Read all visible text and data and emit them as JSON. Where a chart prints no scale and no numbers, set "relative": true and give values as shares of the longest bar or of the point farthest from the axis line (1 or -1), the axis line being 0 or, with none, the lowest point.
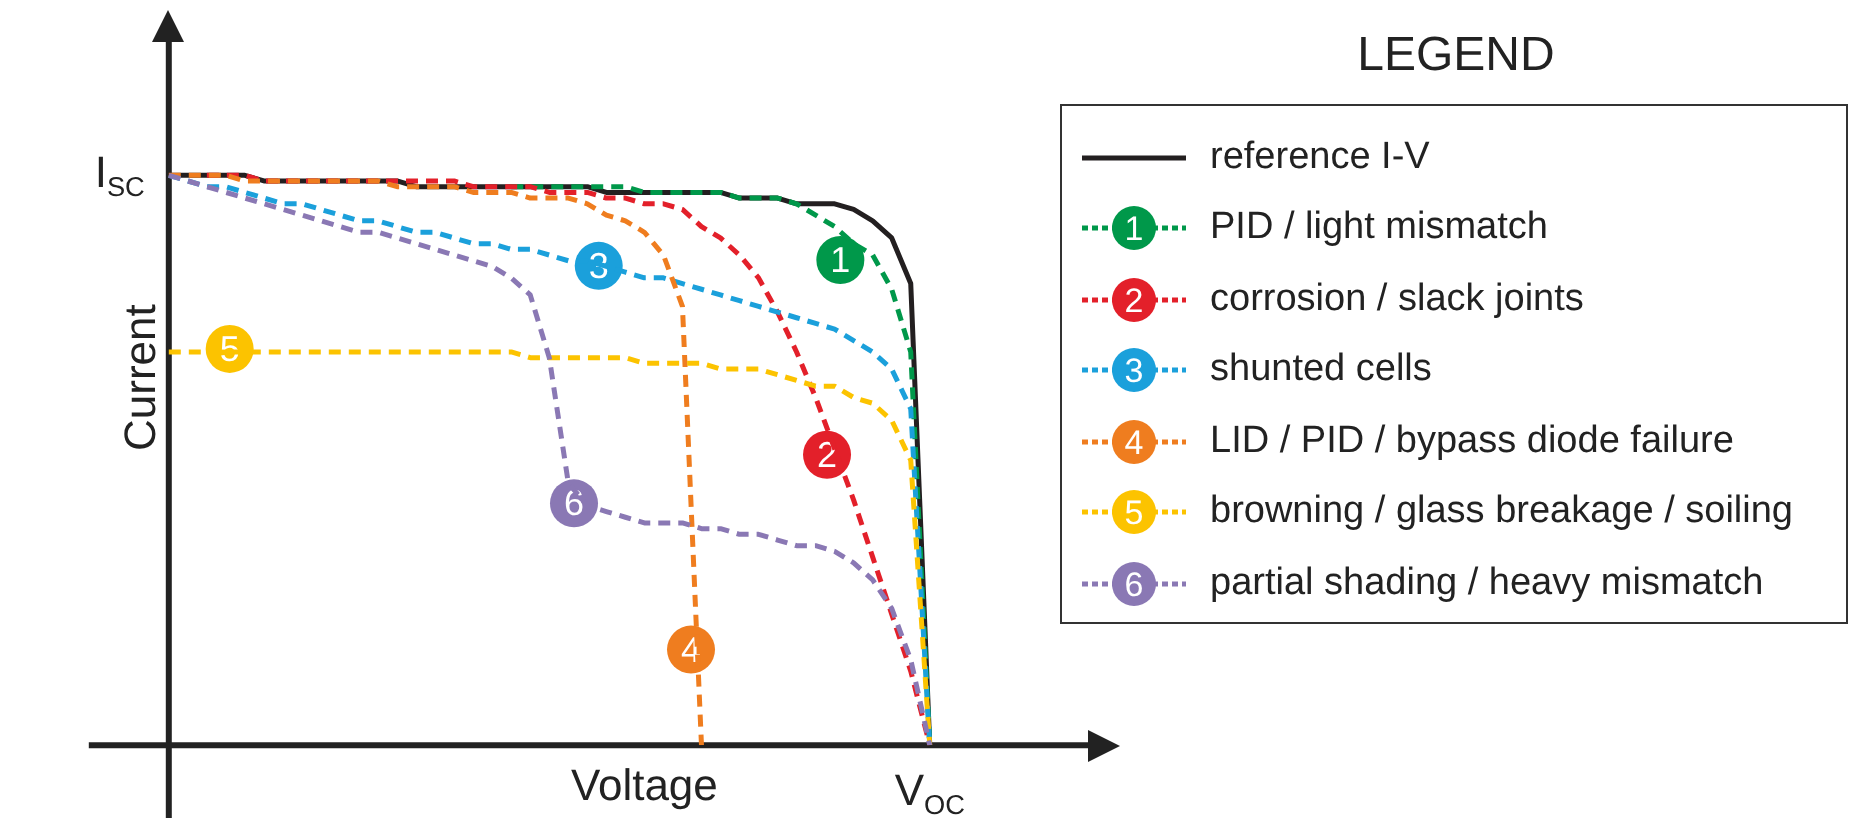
{
  "chart_data": {
    "type": "line",
    "xlabel": "Voltage",
    "ylabel": "Current",
    "legend_title": "LEGEND",
    "legend": "right",
    "relative": true,
    "categories": [
      null,
      null,
      null,
      null,
      null,
      null,
      null,
      null,
      null,
      null,
      null,
      null,
      null,
      null,
      null,
      null,
      null,
      null,
      null,
      null,
      null,
      null,
      null,
      null,
      null,
      null,
      null,
      null,
      null,
      null,
      null,
      null,
      null,
      null,
      null,
      null,
      null,
      null,
      null,
      null,
      null,
      null,
      null,
      null,
      null,
      null,
      null,
      null,
      null,
      null,
      null
    ],
    "annotations": [
      "I$_{SC}$",
      "V$_{OC}$",
      "1",
      "2",
      "3",
      "4",
      "5",
      "6"
    ],
    "series": [
      {
        "name": "reference I-V",
        "color": "#231f20",
        "line_style": "solid",
        "values": [
          1,
          1,
          1,
          1,
          1,
          0.99,
          0.99,
          0.99,
          0.99,
          0.99,
          0.99,
          0.99,
          0.99,
          0.98,
          0.98,
          0.98,
          0.98,
          0.98,
          0.98,
          0.98,
          0.98,
          0.98,
          0.98,
          0.97,
          0.97,
          0.97,
          0.97,
          0.97,
          0.97,
          0.97,
          0.96,
          0.96,
          0.96,
          0.95,
          0.95,
          0.95,
          0.94,
          0.92,
          0.89,
          0.81,
          0,
          null,
          null,
          null,
          null,
          null,
          null,
          null,
          null,
          null,
          null
        ]
      },
      {
        "name": "PID / light mismatch",
        "color": "#00984a",
        "line_style": "dashed",
        "values": [
          null,
          null,
          null,
          null,
          null,
          null,
          null,
          null,
          null,
          null,
          null,
          null,
          null,
          null,
          null,
          null,
          null,
          null,
          0.98,
          0.98,
          0.98,
          0.98,
          0.98,
          0.98,
          0.98,
          0.97,
          0.97,
          0.97,
          0.97,
          0.97,
          0.96,
          0.96,
          0.96,
          0.95,
          0.93,
          0.91,
          0.88,
          0.86,
          0.8,
          0.69,
          0,
          null,
          null,
          null,
          null,
          null,
          null,
          null,
          null,
          null,
          null
        ]
      },
      {
        "name": "corrosion / slack joints",
        "color": "#e3202a",
        "line_style": "dashed",
        "values": [
          null,
          null,
          1,
          1,
          1,
          0.99,
          0.99,
          0.99,
          0.99,
          0.99,
          0.99,
          0.99,
          0.99,
          0.99,
          0.99,
          0.99,
          0.98,
          0.98,
          0.98,
          0.98,
          0.97,
          0.97,
          0.97,
          0.96,
          0.96,
          0.95,
          0.95,
          0.94,
          0.91,
          0.89,
          0.86,
          0.82,
          0.76,
          0.69,
          0.61,
          0.52,
          0.43,
          0.33,
          0.23,
          0.13,
          0,
          null,
          null,
          null,
          null,
          null,
          null,
          null,
          null,
          null,
          null
        ]
      },
      {
        "name": "shunted cells",
        "color": "#1ba0db",
        "line_style": "dashed",
        "values": [
          1,
          0.99,
          0.98,
          0.98,
          0.97,
          0.96,
          0.95,
          0.95,
          0.94,
          0.93,
          0.92,
          0.92,
          0.91,
          0.9,
          0.9,
          0.89,
          0.88,
          0.88,
          0.87,
          0.87,
          0.86,
          0.85,
          0.85,
          0.84,
          0.83,
          0.82,
          0.82,
          0.81,
          0.8,
          0.79,
          0.78,
          0.77,
          0.76,
          0.75,
          0.74,
          0.73,
          0.71,
          0.69,
          0.66,
          0.59,
          0,
          null,
          null,
          null,
          null,
          null,
          null,
          null,
          null,
          null,
          null
        ]
      },
      {
        "name": "LID / PID / bypass diode failure",
        "color": "#ef7d1f",
        "line_style": "dashed",
        "values": [
          1,
          1,
          1,
          1,
          0.99,
          0.99,
          0.99,
          0.99,
          0.99,
          0.99,
          0.99,
          0.99,
          0.98,
          0.98,
          0.98,
          0.98,
          0.97,
          0.97,
          0.97,
          0.96,
          0.96,
          0.96,
          0.95,
          0.93,
          0.92,
          0.9,
          0.86,
          0.77,
          0,
          null,
          null,
          null,
          null,
          null,
          null,
          null,
          null,
          null,
          null,
          null,
          null,
          null,
          null,
          null,
          null,
          null,
          null,
          null,
          null,
          null,
          null
        ]
      },
      {
        "name": "browning / glass breakage / soiling",
        "color": "#fcc300",
        "line_style": "dashed",
        "values": [
          0.69,
          0.69,
          0.69,
          0.69,
          0.69,
          0.69,
          0.69,
          0.69,
          0.69,
          0.69,
          0.69,
          0.69,
          0.69,
          0.69,
          0.69,
          0.69,
          0.69,
          0.69,
          0.69,
          0.68,
          0.68,
          0.68,
          0.68,
          0.68,
          0.68,
          0.67,
          0.67,
          0.67,
          0.67,
          0.66,
          0.66,
          0.66,
          0.65,
          0.64,
          0.63,
          0.63,
          0.61,
          0.6,
          0.57,
          0.5,
          0,
          null,
          null,
          null,
          null,
          null,
          null,
          null,
          null,
          null,
          null
        ]
      },
      {
        "name": "partial shading / heavy mismatch",
        "color": "#8a78b4",
        "line_style": "dashed",
        "values": [
          1,
          0.99,
          0.98,
          0.97,
          0.96,
          0.95,
          0.94,
          0.93,
          0.92,
          0.91,
          0.9,
          0.9,
          0.89,
          0.88,
          0.87,
          0.86,
          0.85,
          0.84,
          0.82,
          0.79,
          0.68,
          0.46,
          0.42,
          0.41,
          0.4,
          0.39,
          0.39,
          0.39,
          0.38,
          0.38,
          0.37,
          0.37,
          0.36,
          0.35,
          0.35,
          0.34,
          0.32,
          0.29,
          0.24,
          0.15,
          0,
          null,
          null,
          null,
          null,
          null,
          null,
          null,
          null,
          null,
          null
        ]
      }
    ]
  }
}
